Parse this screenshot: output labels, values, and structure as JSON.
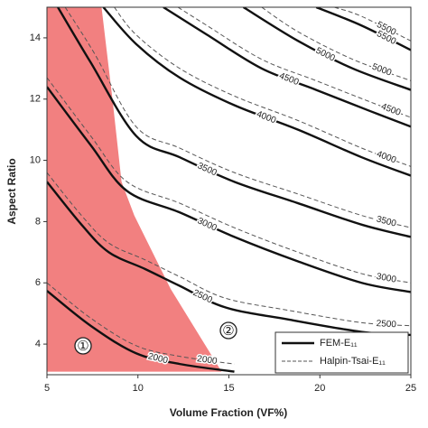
{
  "chart_data": {
    "type": "contour",
    "xlabel": "Volume Fraction (VF%)",
    "ylabel": "Aspect Ratio",
    "xlim": [
      5,
      25
    ],
    "ylim": [
      3,
      15
    ],
    "xticks": [
      5,
      10,
      15,
      20,
      25
    ],
    "yticks": [
      4,
      6,
      8,
      10,
      12,
      14
    ],
    "legend": "lower right",
    "regions": [
      {
        "label": "①",
        "color": "#f28080",
        "x": [
          5,
          8.0,
          8.6,
          9.1,
          9.8,
          11.8,
          14.6,
          5
        ],
        "y": [
          15,
          15,
          12.0,
          9.3,
          8.2,
          5.8,
          3.1,
          3.1
        ]
      },
      {
        "label": "②",
        "color": "#ffffff",
        "x": [],
        "y": []
      }
    ],
    "series": [
      {
        "name": "FEM-E₁₁",
        "color": "#111111",
        "dash": false,
        "contours": [
          {
            "level": 2000,
            "x": [
              5,
              7.4,
              9.9,
              12.3,
              15.3
            ],
            "y": [
              5.74,
              4.6,
              3.7,
              3.35,
              3.1
            ]
          },
          {
            "level": 2500,
            "x": [
              5,
              6.9,
              8.4,
              10.4,
              12.3,
              14.8,
              18.3,
              22.3,
              25
            ],
            "y": [
              9.3,
              7.9,
              7.0,
              6.45,
              5.9,
              5.2,
              4.8,
              4.4,
              4.3
            ]
          },
          {
            "level": 3000,
            "x": [
              5,
              7.4,
              9.4,
              12.3,
              15.3,
              18.8,
              22.3,
              25
            ],
            "y": [
              12.4,
              10.5,
              9.0,
              8.3,
              7.5,
              6.7,
              6.0,
              5.7
            ]
          },
          {
            "level": 3500,
            "x": [
              5.6,
              7.4,
              9.9,
              12.3,
              15.3,
              18.8,
              22.3,
              25
            ],
            "y": [
              15,
              13.2,
              10.8,
              10.1,
              9.3,
              8.6,
              7.9,
              7.5
            ]
          },
          {
            "level": 4000,
            "x": [
              8.1,
              9.9,
              12.3,
              15.3,
              18.8,
              22.3,
              25
            ],
            "y": [
              15,
              13.8,
              12.7,
              11.8,
              11.0,
              10.1,
              9.5
            ]
          },
          {
            "level": 4500,
            "x": [
              11.4,
              13.8,
              16.8,
              19.8,
              22.8,
              25
            ],
            "y": [
              15,
              14.1,
              13.0,
              12.3,
              11.6,
              11.1
            ]
          },
          {
            "level": 5000,
            "x": [
              15.8,
              18.8,
              21.8,
              25
            ],
            "y": [
              15,
              13.9,
              13.0,
              12.3
            ]
          },
          {
            "level": 5500,
            "x": [
              19.8,
              22.3,
              25
            ],
            "y": [
              15,
              14.4,
              13.6
            ]
          }
        ]
      },
      {
        "name": "Halpin-Tsai-E₁₁",
        "color": "#555555",
        "dash": true,
        "contours": [
          {
            "level": 2000,
            "x": [
              5,
              7.4,
              9.9,
              12.3,
              15.3
            ],
            "y": [
              6.0,
              4.85,
              3.95,
              3.6,
              3.35
            ]
          },
          {
            "level": 2500,
            "x": [
              5,
              6.9,
              8.4,
              10.4,
              12.3,
              14.8,
              18.3,
              22.3,
              25
            ],
            "y": [
              9.6,
              8.2,
              7.3,
              6.75,
              6.2,
              5.5,
              5.1,
              4.7,
              4.6
            ]
          },
          {
            "level": 3000,
            "x": [
              5,
              7.4,
              9.4,
              12.3,
              15.3,
              18.8,
              22.3,
              25
            ],
            "y": [
              12.7,
              10.8,
              9.3,
              8.6,
              7.8,
              7.0,
              6.3,
              6.0
            ]
          },
          {
            "level": 3500,
            "x": [
              6.0,
              7.6,
              9.9,
              12.3,
              15.3,
              18.8,
              22.3,
              25
            ],
            "y": [
              15,
              13.5,
              11.1,
              10.4,
              9.6,
              8.9,
              8.2,
              7.8
            ]
          },
          {
            "level": 4000,
            "x": [
              8.7,
              9.9,
              12.3,
              15.3,
              18.8,
              22.3,
              25
            ],
            "y": [
              15,
              14.1,
              13.0,
              12.1,
              11.3,
              10.4,
              9.8
            ]
          },
          {
            "level": 4500,
            "x": [
              12.2,
              13.8,
              16.8,
              19.8,
              22.8,
              25
            ],
            "y": [
              15,
              14.4,
              13.3,
              12.6,
              11.9,
              11.4
            ]
          },
          {
            "level": 5000,
            "x": [
              16.8,
              18.8,
              21.8,
              25
            ],
            "y": [
              15,
              14.2,
              13.3,
              12.6
            ]
          },
          {
            "level": 5500,
            "x": [
              20.8,
              22.3,
              25
            ],
            "y": [
              15,
              14.7,
              13.9
            ]
          }
        ]
      }
    ]
  }
}
